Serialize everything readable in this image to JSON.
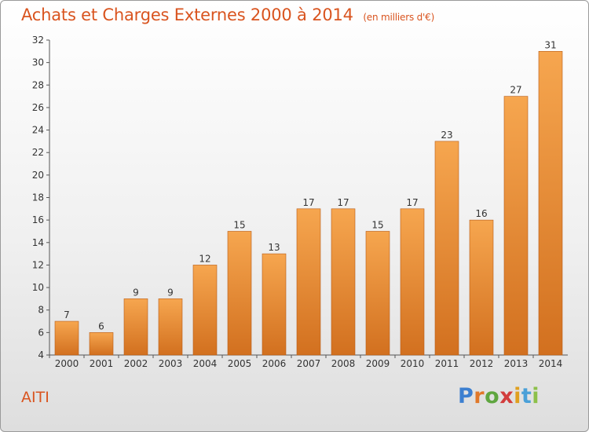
{
  "title": "Achats et Charges Externes 2000 à 2014",
  "subtitle": "(en milliers d'€)",
  "commune": "AITI",
  "logo": {
    "text": "Proxiti",
    "letter_colors": [
      "#3c7fd0",
      "#e0782a",
      "#5fa640",
      "#d23c3c",
      "#e0a020",
      "#4aa0d8",
      "#8cc04a"
    ]
  },
  "colors": {
    "title": "#d9541f",
    "bar_light": "#f6a64f",
    "bar_dark": "#d2701f",
    "bar_shadow": "#b85c18",
    "axis": "#555555"
  },
  "chart_data": {
    "type": "bar",
    "categories": [
      "2000",
      "2001",
      "2002",
      "2003",
      "2004",
      "2005",
      "2006",
      "2007",
      "2008",
      "2009",
      "2010",
      "2011",
      "2012",
      "2013",
      "2014"
    ],
    "values": [
      7,
      6,
      9,
      9,
      12,
      15,
      13,
      17,
      17,
      15,
      17,
      23,
      16,
      27,
      31
    ],
    "title": "Achats et Charges Externes 2000 à 2014",
    "subtitle": "(en milliers d'€)",
    "xlabel": "",
    "ylabel": "",
    "ylim": [
      4,
      32
    ],
    "yticks": [
      4,
      6,
      8,
      10,
      12,
      14,
      16,
      18,
      20,
      22,
      24,
      26,
      28,
      30,
      32
    ],
    "grid": false,
    "data_labels": true
  }
}
